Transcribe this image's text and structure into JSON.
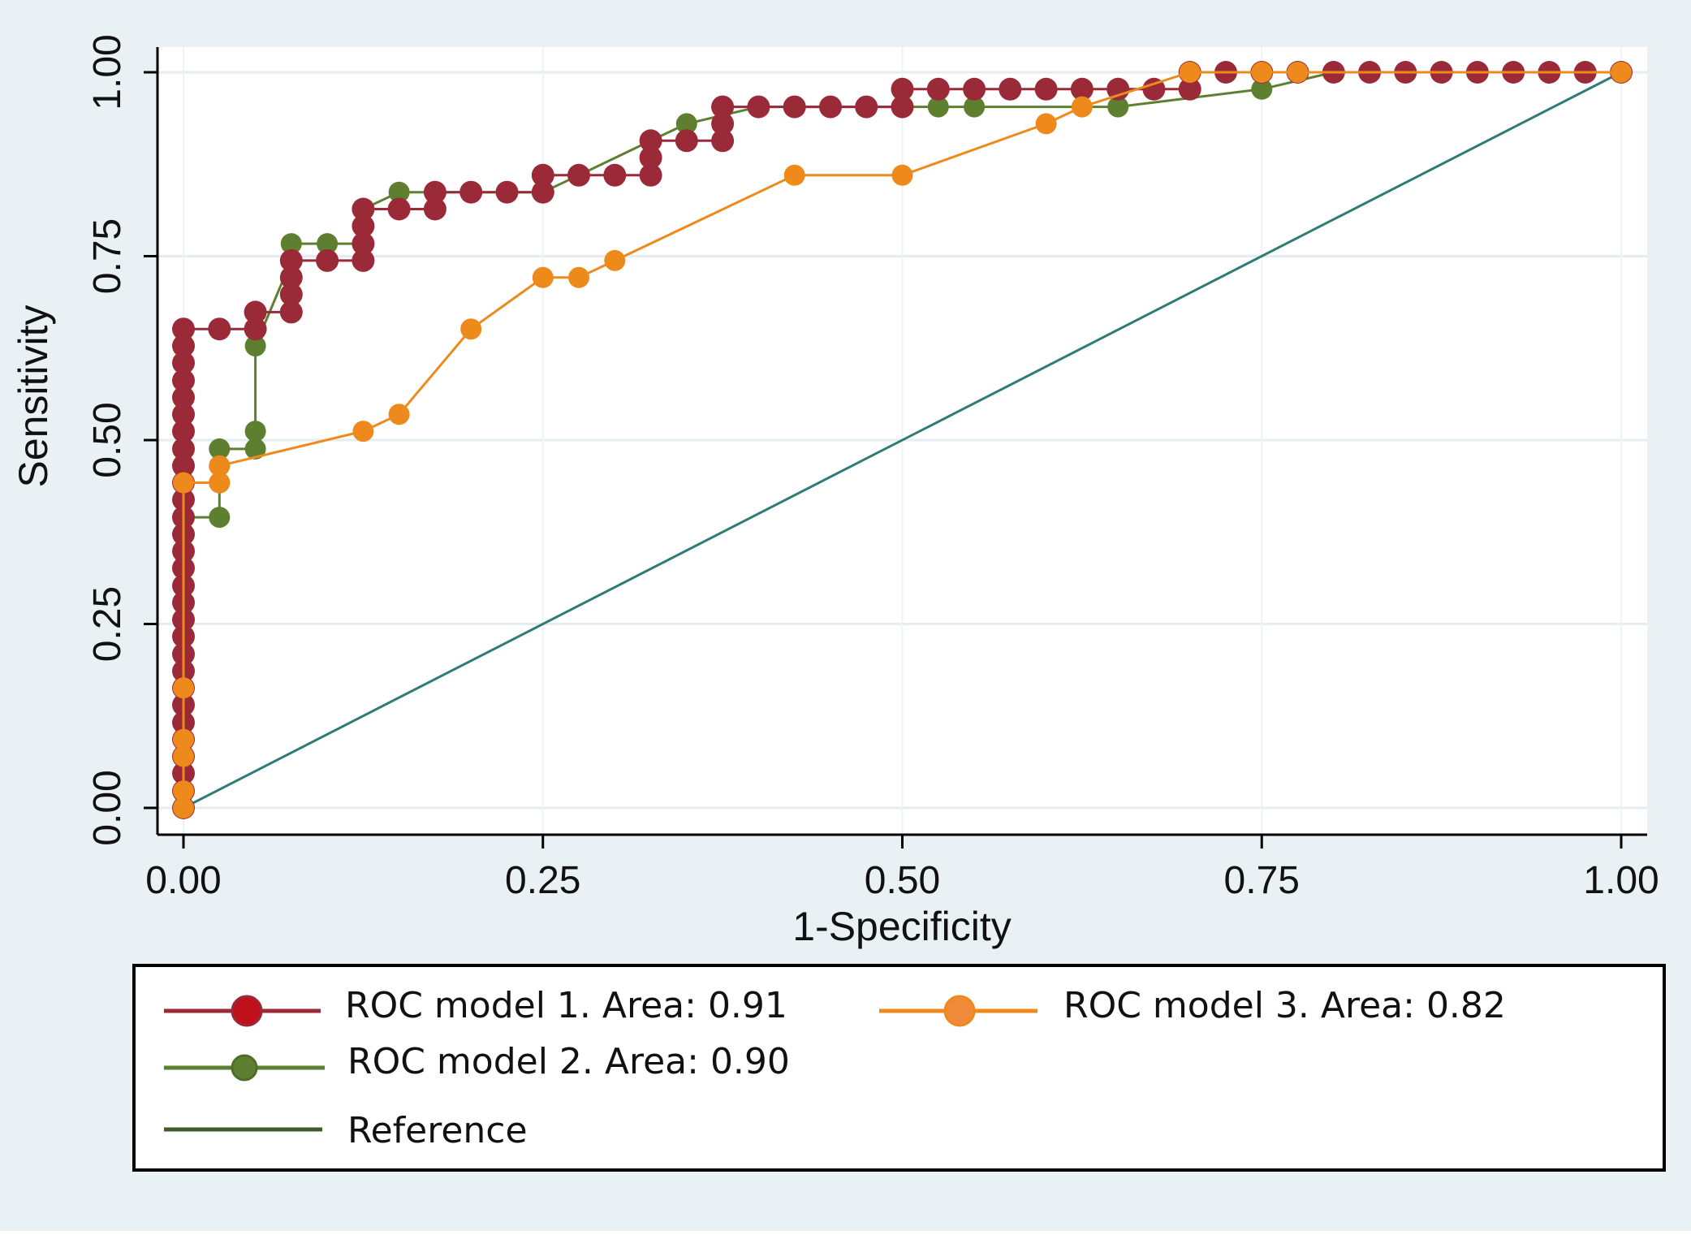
{
  "chart_data": {
    "type": "line",
    "title": "",
    "xlabel": "1-Specificity",
    "ylabel": "Sensitivity",
    "xlim": [
      0,
      1
    ],
    "ylim": [
      0,
      1
    ],
    "xticks": [
      "0.00",
      "0.25",
      "0.50",
      "0.75",
      "1.00"
    ],
    "yticks": [
      "0.00",
      "0.25",
      "0.50",
      "0.75",
      "1.00"
    ],
    "grid": true,
    "legend_position": "bottom",
    "colors": {
      "model1": "#9b2a38",
      "model2": "#5e7f2f",
      "model3": "#ee8a1c",
      "reference": "#2e7c74",
      "legend_reference": "#3e5b2a",
      "background": "#eaf1f5",
      "plot_background": "#ffffff"
    },
    "series": [
      {
        "name": "ROC model 1. Area: 0.91",
        "marker": "circle",
        "points": [
          [
            0,
            0
          ],
          [
            0,
            0.023
          ],
          [
            0,
            0.047
          ],
          [
            0,
            0.07
          ],
          [
            0,
            0.093
          ],
          [
            0,
            0.116
          ],
          [
            0,
            0.14
          ],
          [
            0,
            0.163
          ],
          [
            0,
            0.186
          ],
          [
            0,
            0.209
          ],
          [
            0,
            0.233
          ],
          [
            0,
            0.256
          ],
          [
            0,
            0.279
          ],
          [
            0,
            0.302
          ],
          [
            0,
            0.326
          ],
          [
            0,
            0.349
          ],
          [
            0,
            0.372
          ],
          [
            0,
            0.395
          ],
          [
            0,
            0.419
          ],
          [
            0,
            0.442
          ],
          [
            0,
            0.465
          ],
          [
            0,
            0.488
          ],
          [
            0,
            0.512
          ],
          [
            0,
            0.535
          ],
          [
            0,
            0.558
          ],
          [
            0,
            0.581
          ],
          [
            0,
            0.605
          ],
          [
            0,
            0.628
          ],
          [
            0,
            0.651
          ],
          [
            0.025,
            0.651
          ],
          [
            0.05,
            0.651
          ],
          [
            0.05,
            0.674
          ],
          [
            0.075,
            0.674
          ],
          [
            0.075,
            0.698
          ],
          [
            0.075,
            0.721
          ],
          [
            0.075,
            0.744
          ],
          [
            0.1,
            0.744
          ],
          [
            0.125,
            0.744
          ],
          [
            0.125,
            0.767
          ],
          [
            0.125,
            0.791
          ],
          [
            0.125,
            0.814
          ],
          [
            0.15,
            0.814
          ],
          [
            0.175,
            0.814
          ],
          [
            0.175,
            0.837
          ],
          [
            0.2,
            0.837
          ],
          [
            0.225,
            0.837
          ],
          [
            0.25,
            0.837
          ],
          [
            0.25,
            0.86
          ],
          [
            0.275,
            0.86
          ],
          [
            0.3,
            0.86
          ],
          [
            0.325,
            0.86
          ],
          [
            0.325,
            0.884
          ],
          [
            0.325,
            0.907
          ],
          [
            0.35,
            0.907
          ],
          [
            0.375,
            0.907
          ],
          [
            0.375,
            0.93
          ],
          [
            0.375,
            0.953
          ],
          [
            0.4,
            0.953
          ],
          [
            0.425,
            0.953
          ],
          [
            0.45,
            0.953
          ],
          [
            0.475,
            0.953
          ],
          [
            0.5,
            0.953
          ],
          [
            0.5,
            0.977
          ],
          [
            0.525,
            0.977
          ],
          [
            0.55,
            0.977
          ],
          [
            0.575,
            0.977
          ],
          [
            0.6,
            0.977
          ],
          [
            0.625,
            0.977
          ],
          [
            0.65,
            0.977
          ],
          [
            0.675,
            0.977
          ],
          [
            0.7,
            0.977
          ],
          [
            0.7,
            1
          ],
          [
            0.725,
            1
          ],
          [
            0.75,
            1
          ],
          [
            0.775,
            1
          ],
          [
            0.8,
            1
          ],
          [
            0.825,
            1
          ],
          [
            0.85,
            1
          ],
          [
            0.875,
            1
          ],
          [
            0.9,
            1
          ],
          [
            0.925,
            1
          ],
          [
            0.95,
            1
          ],
          [
            0.975,
            1
          ],
          [
            1,
            1
          ]
        ]
      },
      {
        "name": "ROC model 2. Area: 0.90",
        "marker": "circle",
        "points": [
          [
            0,
            0
          ],
          [
            0,
            0.023
          ],
          [
            0,
            0.047
          ],
          [
            0,
            0.07
          ],
          [
            0,
            0.093
          ],
          [
            0,
            0.116
          ],
          [
            0,
            0.14
          ],
          [
            0,
            0.163
          ],
          [
            0,
            0.186
          ],
          [
            0,
            0.209
          ],
          [
            0,
            0.233
          ],
          [
            0,
            0.256
          ],
          [
            0,
            0.279
          ],
          [
            0,
            0.302
          ],
          [
            0,
            0.326
          ],
          [
            0,
            0.349
          ],
          [
            0,
            0.372
          ],
          [
            0,
            0.395
          ],
          [
            0.025,
            0.395
          ],
          [
            0.025,
            0.442
          ],
          [
            0.025,
            0.465
          ],
          [
            0.025,
            0.488
          ],
          [
            0.05,
            0.488
          ],
          [
            0.05,
            0.512
          ],
          [
            0.05,
            0.628
          ],
          [
            0.075,
            0.744
          ],
          [
            0.075,
            0.767
          ],
          [
            0.1,
            0.767
          ],
          [
            0.125,
            0.767
          ],
          [
            0.125,
            0.814
          ],
          [
            0.15,
            0.837
          ],
          [
            0.175,
            0.837
          ],
          [
            0.2,
            0.837
          ],
          [
            0.225,
            0.837
          ],
          [
            0.25,
            0.837
          ],
          [
            0.275,
            0.86
          ],
          [
            0.325,
            0.907
          ],
          [
            0.35,
            0.93
          ],
          [
            0.4,
            0.953
          ],
          [
            0.5,
            0.953
          ],
          [
            0.525,
            0.953
          ],
          [
            0.55,
            0.953
          ],
          [
            0.65,
            0.953
          ],
          [
            0.75,
            0.977
          ],
          [
            0.8,
            1
          ],
          [
            0.825,
            1
          ],
          [
            0.875,
            1
          ],
          [
            1,
            1
          ]
        ]
      },
      {
        "name": "ROC model 3. Area: 0.82",
        "marker": "circle",
        "points": [
          [
            0,
            0
          ],
          [
            0,
            0.023
          ],
          [
            0,
            0.07
          ],
          [
            0,
            0.093
          ],
          [
            0,
            0.163
          ],
          [
            0,
            0.442
          ],
          [
            0.025,
            0.442
          ],
          [
            0.025,
            0.465
          ],
          [
            0.125,
            0.512
          ],
          [
            0.15,
            0.535
          ],
          [
            0.2,
            0.651
          ],
          [
            0.25,
            0.721
          ],
          [
            0.275,
            0.721
          ],
          [
            0.3,
            0.744
          ],
          [
            0.425,
            0.86
          ],
          [
            0.5,
            0.86
          ],
          [
            0.6,
            0.93
          ],
          [
            0.625,
            0.953
          ],
          [
            0.7,
            1
          ],
          [
            0.75,
            1
          ],
          [
            0.775,
            1
          ],
          [
            1,
            1
          ]
        ]
      },
      {
        "name": "Reference",
        "marker": "none",
        "points": [
          [
            0,
            0
          ],
          [
            1,
            1
          ]
        ]
      }
    ]
  }
}
